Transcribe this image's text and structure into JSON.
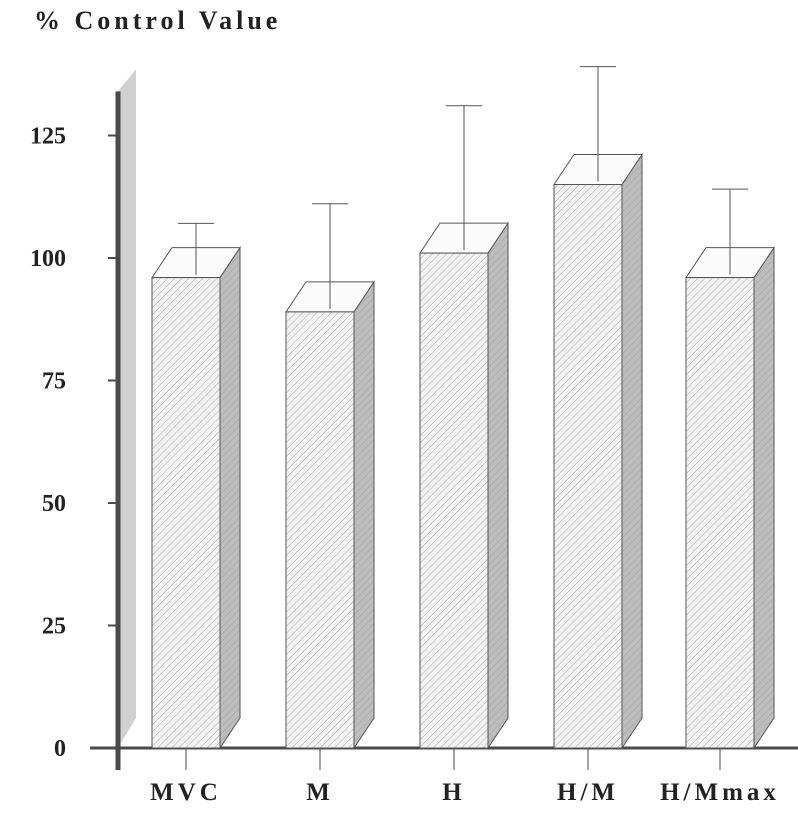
{
  "chart_data": {
    "type": "bar",
    "title": "% Control Value",
    "xlabel": "",
    "ylabel": "",
    "categories": [
      "MVC",
      "M",
      "H",
      "H/M",
      "H/Mmax"
    ],
    "values": [
      96,
      89,
      101,
      115,
      96
    ],
    "errors": [
      8,
      19,
      27,
      21,
      15
    ],
    "yticks": [
      0,
      25,
      50,
      75,
      100,
      125
    ],
    "ylim": [
      0,
      130
    ],
    "grid": false,
    "legend": "none",
    "style": "3d-hatched",
    "colors": {
      "bar_front": "#f2f2f2",
      "bar_side": "#bdbdbd",
      "bar_top": "#fbfbfb",
      "back_wall": "#d0d0d0",
      "axis": "#4a4a4a",
      "hatch": "#9a9a9a"
    }
  }
}
